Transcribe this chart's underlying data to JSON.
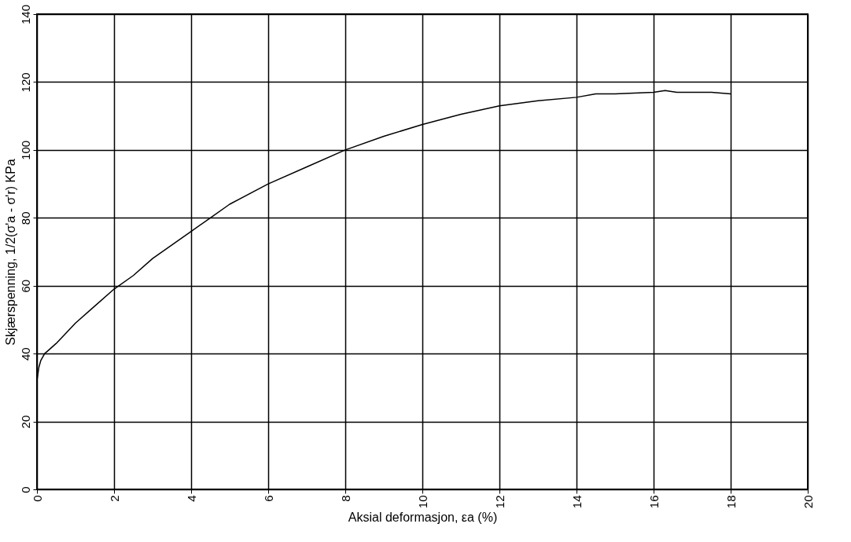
{
  "chart_data": {
    "type": "line",
    "xlabel": "Aksial deformasjon, εa (%)",
    "ylabel": "Skjærspenning, 1/2(σ'a - σ'r) KPa",
    "series": [
      {
        "color": "#000000",
        "x": [
          0,
          0.05,
          0.1,
          0.2,
          0.3,
          0.5,
          0.75,
          1,
          1.5,
          2,
          2.5,
          3,
          3.5,
          4,
          4.5,
          5,
          6,
          7,
          8,
          9,
          10,
          11,
          12,
          13,
          14,
          14.5,
          15,
          16,
          16.3,
          16.6,
          17,
          17.5,
          18
        ],
        "values": [
          32,
          36,
          38,
          40,
          41,
          43,
          46,
          49,
          54,
          59,
          63,
          68,
          72,
          76,
          80,
          84,
          90,
          95,
          100,
          104,
          107.5,
          110.5,
          113,
          114.5,
          115.5,
          116.5,
          116.5,
          117,
          117.5,
          117,
          117,
          117,
          116.5
        ]
      }
    ],
    "xlim": [
      0,
      20
    ],
    "ylim": [
      0,
      140
    ],
    "xticks": [
      0,
      2,
      4,
      6,
      8,
      10,
      12,
      14,
      16,
      18,
      20
    ],
    "yticks": [
      0,
      20,
      40,
      60,
      80,
      100,
      120,
      140
    ],
    "grid": true,
    "marker": "none",
    "line_style": "solid"
  }
}
